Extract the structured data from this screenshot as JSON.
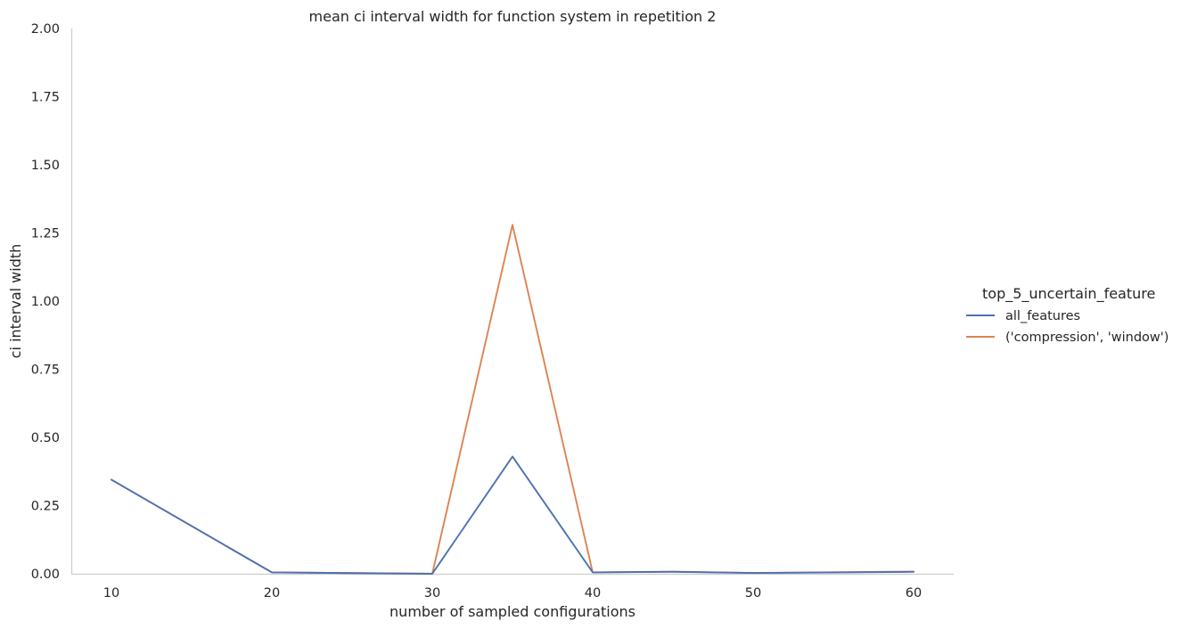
{
  "chart_data": {
    "type": "line",
    "title": "mean ci interval width for function system in repetition 2",
    "xlabel": "number of sampled configurations",
    "ylabel": "ci interval width",
    "xlim": [
      7.5,
      62.5
    ],
    "ylim": [
      0,
      2
    ],
    "xticks": [
      "10",
      "20",
      "30",
      "40",
      "50",
      "60"
    ],
    "yticks": [
      "0.00",
      "0.25",
      "0.50",
      "0.75",
      "1.00",
      "1.25",
      "1.50",
      "1.75",
      "2.00"
    ],
    "grid": false,
    "legend": {
      "title": "top_5_uncertain_feature",
      "placement": "right"
    },
    "x": [
      10,
      20,
      30,
      35,
      40,
      45,
      50,
      60
    ],
    "series": [
      {
        "name": "all_features",
        "color": "#4c72b0",
        "values": [
          0.345,
          0.005,
          0.0,
          0.43,
          0.005,
          0.007,
          0.003,
          0.007
        ]
      },
      {
        "name": "('compression', 'window')",
        "color": "#dd8452",
        "values": [
          0.345,
          0.005,
          0.0,
          1.28,
          0.005,
          0.008,
          0.003,
          0.008
        ]
      }
    ]
  }
}
